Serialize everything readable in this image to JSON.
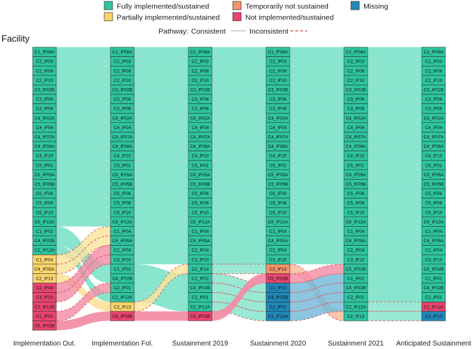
{
  "chart_data": {
    "type": "alluvial",
    "title": "",
    "ylabel": "Facility",
    "colors": {
      "fully": "#2EC4A0",
      "partial": "#F9D46B",
      "temporary": "#F4936A",
      "not": "#E8456E",
      "missing": "#1F88B8",
      "flow_fully": "#7FE3C9",
      "flow_partial": "#FBE39C",
      "flow_temporary": "#F8B89A",
      "flow_not": "#F38BA5",
      "flow_missing": "#6FB8D8",
      "dash": "#E05A5A",
      "solid": "#BFBFBF"
    },
    "legend": {
      "items": [
        {
          "key": "fully",
          "label": "Fully implemented/sustained"
        },
        {
          "key": "temporary",
          "label": "Temporarily not sustained"
        },
        {
          "key": "missing",
          "label": "Missing"
        },
        {
          "key": "partial",
          "label": "Partially implemented/sustained"
        },
        {
          "key": "not",
          "label": "Not implemented/sustained"
        }
      ],
      "pathway_title": "Pathway:",
      "consistent_label": "Consistent",
      "inconsistent_label": "Inconsistent"
    },
    "columns": [
      {
        "label": "Implementation Out.",
        "items": [
          [
            "C1_IF08A",
            "fully"
          ],
          [
            "C2_IF03",
            "fully"
          ],
          [
            "C2_IF09",
            "fully"
          ],
          [
            "C2_IF10",
            "fully"
          ],
          [
            "C3_IF02B",
            "fully"
          ],
          [
            "C3_IF06",
            "fully"
          ],
          [
            "C3_IF08",
            "fully"
          ],
          [
            "C4_IF02A",
            "fully"
          ],
          [
            "C4_IF04",
            "fully"
          ],
          [
            "C4_IF07A",
            "fully"
          ],
          [
            "C4_IF08A",
            "fully"
          ],
          [
            "C4_IF10",
            "fully"
          ],
          [
            "C5_IF01",
            "fully"
          ],
          [
            "C5_IF05A",
            "fully"
          ],
          [
            "C5_IF05B",
            "fully"
          ],
          [
            "C5_IF06",
            "fully"
          ],
          [
            "C5_IF08",
            "fully"
          ],
          [
            "C5_IF10",
            "fully"
          ],
          [
            "C5_IF12A",
            "fully"
          ],
          [
            "C1_IF02",
            "fully"
          ],
          [
            "C4_IF02B",
            "fully"
          ],
          [
            "C2_IF12A",
            "fully"
          ],
          [
            "C1_IF04",
            "partial"
          ],
          [
            "C4_IF05A",
            "partial"
          ],
          [
            "C2_IF13",
            "partial"
          ],
          [
            "C2_IF04",
            "not"
          ],
          [
            "C3_IF10",
            "not"
          ],
          [
            "C2_IF12B",
            "not"
          ],
          [
            "C2_IF01",
            "not"
          ],
          [
            "C5_IF02B",
            "not"
          ]
        ]
      },
      {
        "label": "Implementation Fol.",
        "items": [
          [
            "C1_IF08A",
            "fully"
          ],
          [
            "C2_IF03",
            "fully"
          ],
          [
            "C2_IF09",
            "fully"
          ],
          [
            "C2_IF10",
            "fully"
          ],
          [
            "C3_IF02B",
            "fully"
          ],
          [
            "C3_IF06",
            "fully"
          ],
          [
            "C3_IF08",
            "fully"
          ],
          [
            "C4_IF02A",
            "fully"
          ],
          [
            "C4_IF04",
            "fully"
          ],
          [
            "C4_IF07A",
            "fully"
          ],
          [
            "C4_IF08A",
            "fully"
          ],
          [
            "C4_IF10",
            "fully"
          ],
          [
            "C5_IF01",
            "fully"
          ],
          [
            "C5_IF05A",
            "fully"
          ],
          [
            "C5_IF05B",
            "fully"
          ],
          [
            "C5_IF06",
            "fully"
          ],
          [
            "C5_IF08",
            "fully"
          ],
          [
            "C5_IF10",
            "fully"
          ],
          [
            "C5_IF12A",
            "fully"
          ],
          [
            "C1_IF04",
            "fully"
          ],
          [
            "C4_IF05A",
            "fully"
          ],
          [
            "C2_IF04",
            "fully"
          ],
          [
            "C3_IF10",
            "fully"
          ],
          [
            "C1_IF02",
            "fully"
          ],
          [
            "C4_IF02B",
            "fully"
          ],
          [
            "C2_IF01",
            "fully"
          ],
          [
            "C2_IF12A",
            "fully"
          ],
          [
            "C2_IF13",
            "partial"
          ],
          [
            "C5_IF02B",
            "not"
          ]
        ]
      },
      {
        "label": "Sustainment 2019",
        "items": [
          [
            "C1_IF08A",
            "fully"
          ],
          [
            "C2_IF03",
            "fully"
          ],
          [
            "C2_IF09",
            "fully"
          ],
          [
            "C2_IF10",
            "fully"
          ],
          [
            "C3_IF02B",
            "fully"
          ],
          [
            "C3_IF06",
            "fully"
          ],
          [
            "C3_IF08",
            "fully"
          ],
          [
            "C4_IF02A",
            "fully"
          ],
          [
            "C4_IF04",
            "fully"
          ],
          [
            "C4_IF07A",
            "fully"
          ],
          [
            "C4_IF08A",
            "fully"
          ],
          [
            "C4_IF10",
            "fully"
          ],
          [
            "C5_IF01",
            "fully"
          ],
          [
            "C5_IF05A",
            "fully"
          ],
          [
            "C5_IF05B",
            "fully"
          ],
          [
            "C5_IF06",
            "fully"
          ],
          [
            "C5_IF08",
            "fully"
          ],
          [
            "C5_IF10",
            "fully"
          ],
          [
            "C5_IF12A",
            "fully"
          ],
          [
            "C1_IF04",
            "fully"
          ],
          [
            "C4_IF05A",
            "fully"
          ],
          [
            "C2_IF04",
            "fully"
          ],
          [
            "C3_IF10",
            "fully"
          ],
          [
            "C2_IF13",
            "fully"
          ],
          [
            "C1_IF02",
            "fully"
          ],
          [
            "C4_IF02B",
            "fully"
          ],
          [
            "C2_IF01",
            "fully"
          ],
          [
            "C2_IF12A",
            "fully"
          ],
          [
            "C5_IF02B",
            "not"
          ]
        ]
      },
      {
        "label": "Sustainment 2020",
        "items": [
          [
            "C1_IF08A",
            "fully"
          ],
          [
            "C2_IF03",
            "fully"
          ],
          [
            "C2_IF09",
            "fully"
          ],
          [
            "C2_IF10",
            "fully"
          ],
          [
            "C3_IF02B",
            "fully"
          ],
          [
            "C3_IF06",
            "fully"
          ],
          [
            "C3_IF08",
            "fully"
          ],
          [
            "C4_IF02A",
            "fully"
          ],
          [
            "C4_IF04",
            "fully"
          ],
          [
            "C4_IF07A",
            "fully"
          ],
          [
            "C4_IF08A",
            "fully"
          ],
          [
            "C4_IF10",
            "fully"
          ],
          [
            "C5_IF01",
            "fully"
          ],
          [
            "C5_IF05A",
            "fully"
          ],
          [
            "C5_IF05B",
            "fully"
          ],
          [
            "C5_IF06",
            "fully"
          ],
          [
            "C5_IF08",
            "fully"
          ],
          [
            "C5_IF10",
            "fully"
          ],
          [
            "C5_IF12A",
            "fully"
          ],
          [
            "C1_IF04",
            "fully"
          ],
          [
            "C4_IF05A",
            "fully"
          ],
          [
            "C2_IF04",
            "fully"
          ],
          [
            "C3_IF10",
            "fully"
          ],
          [
            "C2_IF13",
            "temporary"
          ],
          [
            "C5_IF02B",
            "not"
          ],
          [
            "C1_IF02",
            "missing"
          ],
          [
            "C4_IF02B",
            "missing"
          ],
          [
            "C2_IF01",
            "missing"
          ],
          [
            "C2_IF12A",
            "missing"
          ]
        ]
      },
      {
        "label": "Sustainment 2021",
        "items": [
          [
            "C1_IF08A",
            "fully"
          ],
          [
            "C2_IF03",
            "fully"
          ],
          [
            "C2_IF09",
            "fully"
          ],
          [
            "C2_IF10",
            "fully"
          ],
          [
            "C3_IF02B",
            "fully"
          ],
          [
            "C3_IF06",
            "fully"
          ],
          [
            "C3_IF08",
            "fully"
          ],
          [
            "C4_IF02A",
            "fully"
          ],
          [
            "C4_IF04",
            "fully"
          ],
          [
            "C4_IF07A",
            "fully"
          ],
          [
            "C4_IF08A",
            "fully"
          ],
          [
            "C4_IF10",
            "fully"
          ],
          [
            "C5_IF01",
            "fully"
          ],
          [
            "C5_IF05A",
            "fully"
          ],
          [
            "C5_IF05B",
            "fully"
          ],
          [
            "C5_IF06",
            "fully"
          ],
          [
            "C5_IF08",
            "fully"
          ],
          [
            "C5_IF10",
            "fully"
          ],
          [
            "C5_IF12A",
            "fully"
          ],
          [
            "C1_IF04",
            "fully"
          ],
          [
            "C4_IF05A",
            "fully"
          ],
          [
            "C2_IF04",
            "fully"
          ],
          [
            "C3_IF10",
            "fully"
          ],
          [
            "C5_IF02B",
            "fully"
          ],
          [
            "C1_IF02",
            "fully"
          ],
          [
            "C4_IF02B",
            "fully"
          ],
          [
            "C2_IF01",
            "fully"
          ],
          [
            "C2_IF12A",
            "fully"
          ],
          [
            "C2_IF13",
            "fully"
          ]
        ]
      },
      {
        "label": "Anticipated Sustainment",
        "items": [
          [
            "C1_IF08A",
            "fully"
          ],
          [
            "C2_IF03",
            "fully"
          ],
          [
            "C2_IF09",
            "fully"
          ],
          [
            "C2_IF10",
            "fully"
          ],
          [
            "C3_IF02B",
            "fully"
          ],
          [
            "C3_IF06",
            "fully"
          ],
          [
            "C3_IF08",
            "fully"
          ],
          [
            "C4_IF02A",
            "fully"
          ],
          [
            "C4_IF04",
            "fully"
          ],
          [
            "C4_IF07A",
            "fully"
          ],
          [
            "C4_IF08A",
            "fully"
          ],
          [
            "C4_IF10",
            "fully"
          ],
          [
            "C5_IF01",
            "fully"
          ],
          [
            "C5_IF05A",
            "fully"
          ],
          [
            "C5_IF05B",
            "fully"
          ],
          [
            "C5_IF06",
            "fully"
          ],
          [
            "C5_IF08",
            "fully"
          ],
          [
            "C5_IF10",
            "fully"
          ],
          [
            "C5_IF12A",
            "fully"
          ],
          [
            "C1_IF04",
            "fully"
          ],
          [
            "C4_IF05A",
            "fully"
          ],
          [
            "C2_IF04",
            "fully"
          ],
          [
            "C3_IF10",
            "fully"
          ],
          [
            "C5_IF02B",
            "fully"
          ],
          [
            "C1_IF02",
            "fully"
          ],
          [
            "C4_IF02B",
            "fully"
          ],
          [
            "C2_IF01",
            "fully"
          ],
          [
            "C2_IF12A",
            "not"
          ],
          [
            "C2_IF13",
            "missing"
          ]
        ]
      }
    ]
  }
}
